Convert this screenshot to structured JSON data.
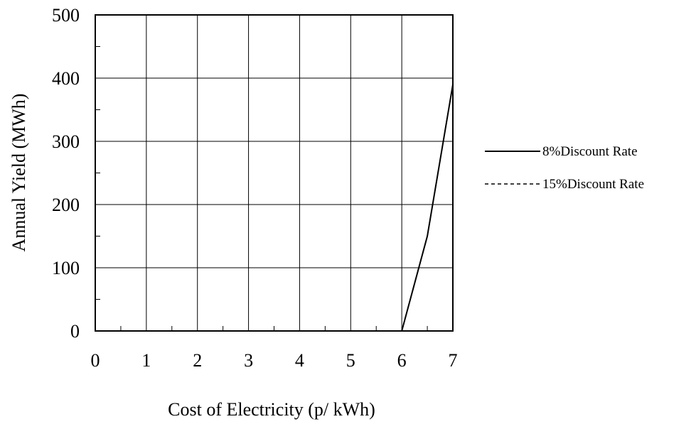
{
  "chart_data": {
    "type": "line",
    "xlabel": "Cost of Electricity (p/ kWh)",
    "ylabel": "Annual Yield (MWh)",
    "xlim": [
      0,
      7
    ],
    "ylim": [
      0,
      500
    ],
    "x_ticks": [
      "0",
      "1",
      "2",
      "3",
      "4",
      "5",
      "6",
      "7"
    ],
    "y_ticks": [
      "0",
      "100",
      "200",
      "300",
      "400",
      "500"
    ],
    "grid": true,
    "legend_position": "right",
    "series": [
      {
        "name": "8%Discount Rate",
        "line_style": "solid",
        "color": "#000000",
        "x": [
          6,
          6.5,
          7
        ],
        "y": [
          0,
          150,
          390
        ]
      },
      {
        "name": "15%Discount Rate",
        "line_style": "dashed",
        "color": "#000000",
        "x": [],
        "y": []
      }
    ]
  }
}
